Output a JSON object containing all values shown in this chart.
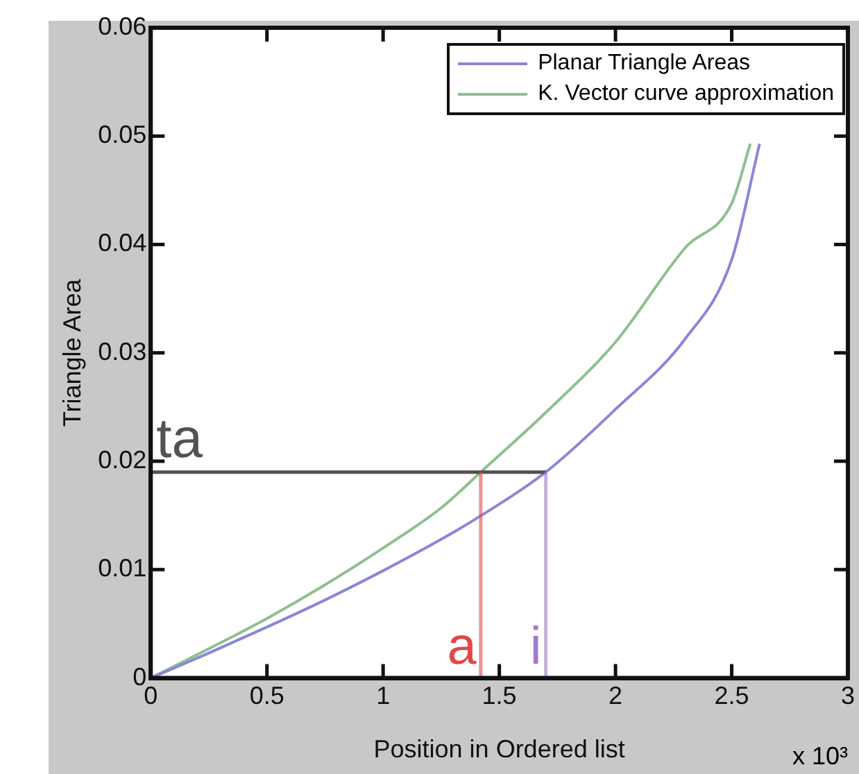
{
  "chart_data": {
    "type": "line",
    "xlabel": "Position in Ordered list",
    "ylabel": "Triangle Area",
    "xlim": [
      0,
      3
    ],
    "xticks": [
      0,
      0.5,
      1,
      1.5,
      2,
      2.5,
      3
    ],
    "ylim": [
      0,
      0.06
    ],
    "yticks": [
      0,
      0.01,
      0.02,
      0.03,
      0.04,
      0.05,
      0.06
    ],
    "grid": false,
    "legend": "top right",
    "marker": "none",
    "line_style": "solid",
    "series": [
      {
        "name": "Planar Triangle Areas",
        "color": "#8a86d8",
        "x": [
          0,
          0.25,
          0.5,
          0.75,
          1,
          1.25,
          1.4,
          1.7,
          2,
          2.3,
          2.5,
          2.62
        ],
        "values": [
          0,
          0.0023,
          0.0047,
          0.0072,
          0.0099,
          0.0128,
          0.0147,
          0.019,
          0.0248,
          0.0313,
          0.0386,
          0.0493
        ]
      },
      {
        "name": "K. Vector curve approximation",
        "color": "#8fbf8f",
        "x": [
          0,
          0.25,
          0.5,
          0.75,
          1,
          1.25,
          1.42,
          1.7,
          2,
          2.3,
          2.5,
          2.58
        ],
        "values": [
          0,
          0.0027,
          0.0055,
          0.0086,
          0.012,
          0.0157,
          0.019,
          0.0245,
          0.031,
          0.0397,
          0.0438,
          0.0493
        ]
      }
    ],
    "ref_lines": [
      {
        "axis": "y",
        "value": 0.019,
        "label": "ta",
        "color": "#555055"
      },
      {
        "axis": "x",
        "value": 1.42,
        "label": "a",
        "color": "#e04848"
      },
      {
        "axis": "x",
        "value": 1.7,
        "label": "i",
        "color": "#a07cc8"
      }
    ],
    "annotations": [
      "x 10³"
    ]
  }
}
